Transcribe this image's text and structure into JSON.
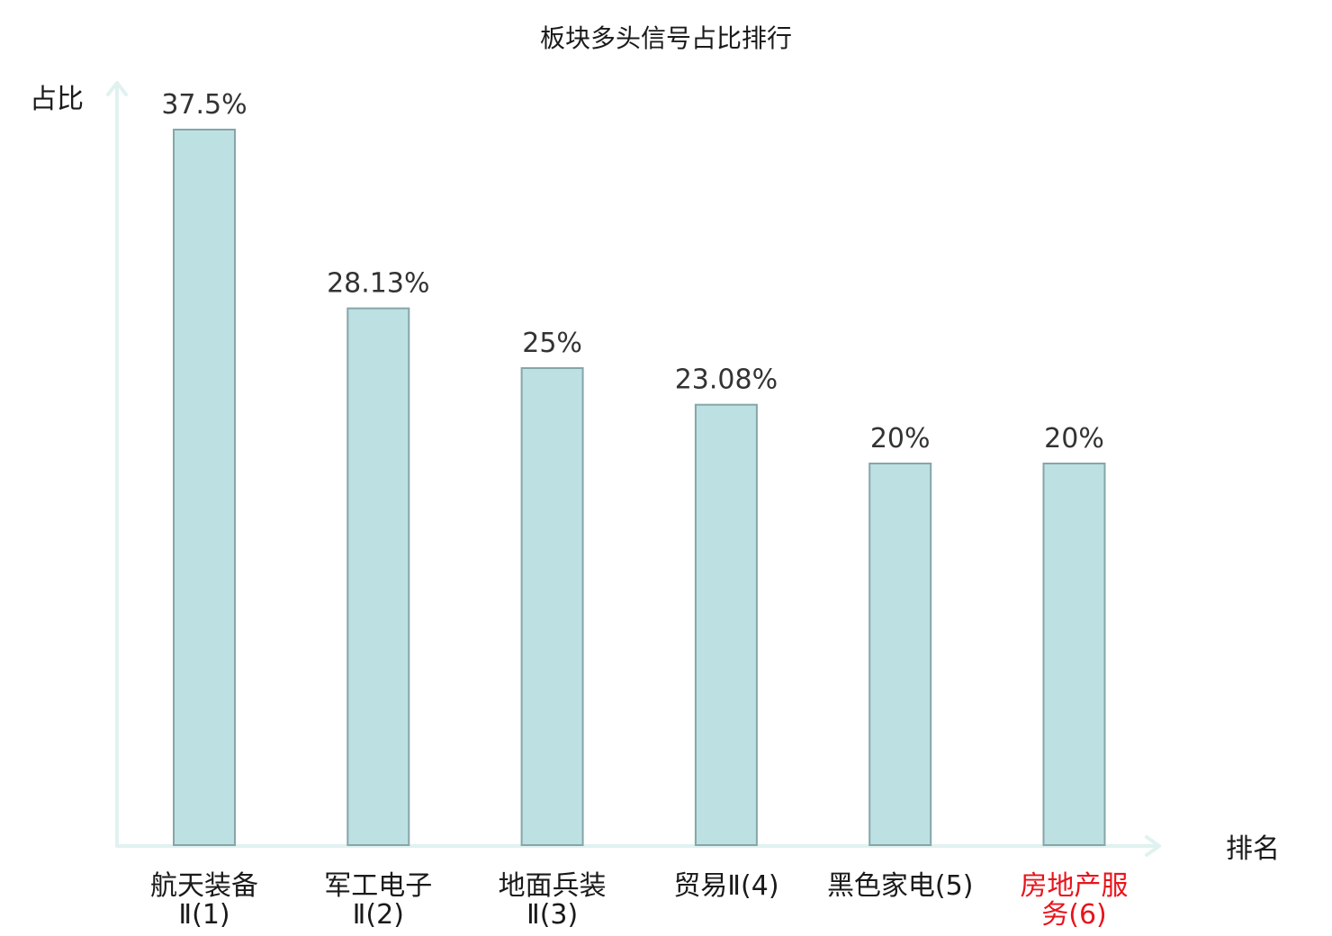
{
  "chart_data": {
    "type": "bar",
    "title": "板块多头信号占比排行",
    "ylabel": "占比",
    "xlabel": "排名",
    "categories": [
      {
        "lines": [
          "航天装备",
          "Ⅱ(1)"
        ],
        "highlight": false
      },
      {
        "lines": [
          "军工电子",
          "Ⅱ(2)"
        ],
        "highlight": false
      },
      {
        "lines": [
          "地面兵装",
          "Ⅱ(3)"
        ],
        "highlight": false
      },
      {
        "lines": [
          "贸易Ⅱ(4)"
        ],
        "highlight": false
      },
      {
        "lines": [
          "黑色家电(5)"
        ],
        "highlight": false
      },
      {
        "lines": [
          "房地产服",
          "务(6)"
        ],
        "highlight": true
      }
    ],
    "values": [
      37.5,
      28.13,
      25,
      23.08,
      20,
      20
    ],
    "value_labels": [
      "37.5%",
      "28.13%",
      "25%",
      "23.08%",
      "20%",
      "20%"
    ],
    "ylim": [
      0,
      37.5
    ],
    "grid": false,
    "colors": {
      "bar_fill": "#bde0e3",
      "bar_stroke": "#86a6a9",
      "axis": "#e0f2f0",
      "text": "#1a1a1a",
      "value_text": "#333333",
      "highlight_text": "#e8141c"
    }
  }
}
